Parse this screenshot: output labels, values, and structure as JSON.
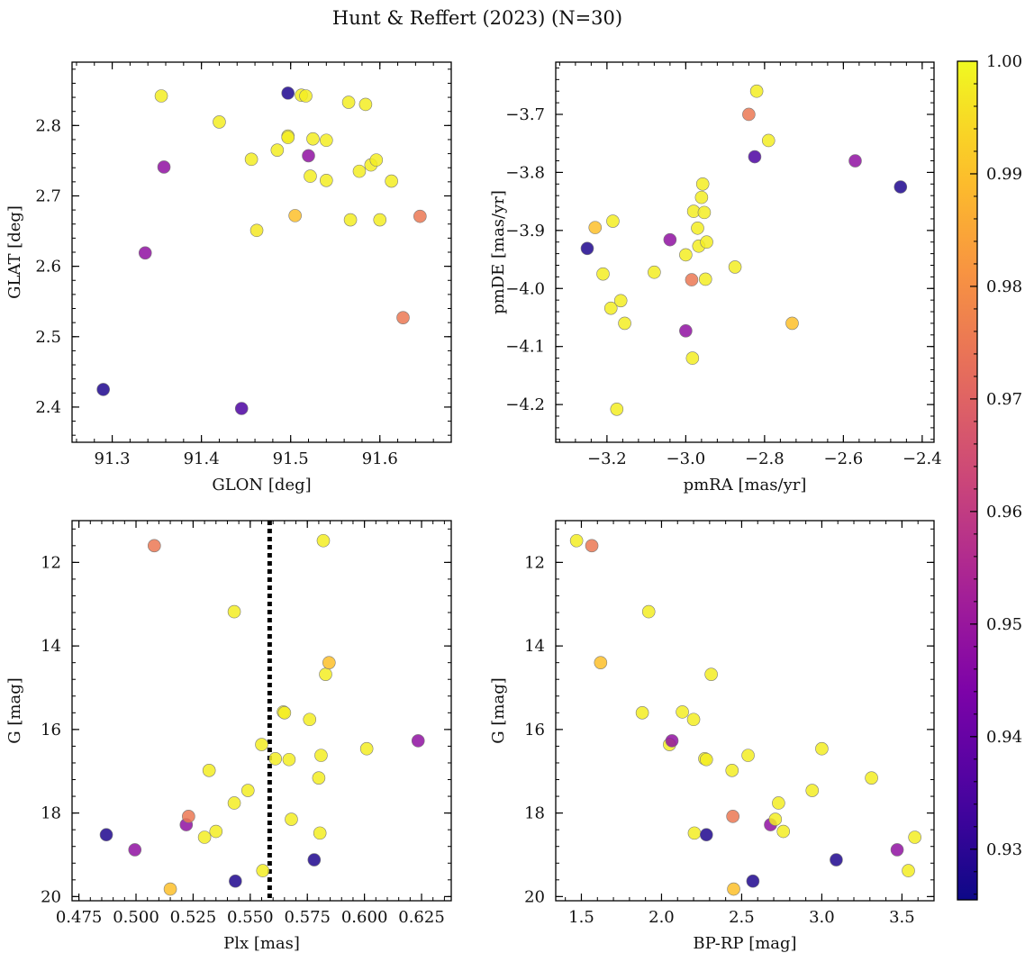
{
  "title": "Hunt & Reffert (2023) (N=30)",
  "colorbar": {
    "min": 0.9255,
    "max": 1.0,
    "ticks": [
      0.93,
      0.94,
      0.95,
      0.96,
      0.97,
      0.98,
      0.99,
      1.0
    ],
    "tick_labels": [
      "0.93",
      "0.94",
      "0.95",
      "0.96",
      "0.97",
      "0.98",
      "0.99",
      "1.00"
    ],
    "colormap": "plasma"
  },
  "chart_data": [
    {
      "type": "scatter",
      "name": "glon-glat",
      "xlabel": "GLON [deg]",
      "ylabel": "GLAT [deg]",
      "xlim": [
        91.255,
        91.68
      ],
      "ylim": [
        2.35,
        2.89
      ],
      "invert_y": false,
      "xticks": [
        91.3,
        91.4,
        91.5,
        91.6
      ],
      "xtick_labels": [
        "91.3",
        "91.4",
        "91.5",
        "91.6"
      ],
      "yticks": [
        2.4,
        2.5,
        2.6,
        2.7,
        2.8
      ],
      "ytick_labels": [
        "2.4",
        "2.5",
        "2.6",
        "2.7",
        "2.8"
      ],
      "points": [
        {
          "x": 91.29,
          "y": 2.425,
          "c": 0.928
        },
        {
          "x": 91.337,
          "y": 2.619,
          "c": 0.948
        },
        {
          "x": 91.355,
          "y": 2.842,
          "c": 0.998
        },
        {
          "x": 91.358,
          "y": 2.741,
          "c": 0.948
        },
        {
          "x": 91.42,
          "y": 2.805,
          "c": 0.998
        },
        {
          "x": 91.445,
          "y": 2.398,
          "c": 0.935
        },
        {
          "x": 91.456,
          "y": 2.752,
          "c": 0.998
        },
        {
          "x": 91.462,
          "y": 2.651,
          "c": 0.997
        },
        {
          "x": 91.485,
          "y": 2.765,
          "c": 0.998
        },
        {
          "x": 91.497,
          "y": 2.846,
          "c": 0.928
        },
        {
          "x": 91.497,
          "y": 2.785,
          "c": 0.998
        },
        {
          "x": 91.497,
          "y": 2.783,
          "c": 0.998
        },
        {
          "x": 91.505,
          "y": 2.672,
          "c": 0.99
        },
        {
          "x": 91.512,
          "y": 2.843,
          "c": 0.998
        },
        {
          "x": 91.517,
          "y": 2.842,
          "c": 0.998
        },
        {
          "x": 91.52,
          "y": 2.757,
          "c": 0.948
        },
        {
          "x": 91.522,
          "y": 2.728,
          "c": 0.998
        },
        {
          "x": 91.525,
          "y": 2.781,
          "c": 0.998
        },
        {
          "x": 91.54,
          "y": 2.779,
          "c": 0.998
        },
        {
          "x": 91.54,
          "y": 2.722,
          "c": 0.998
        },
        {
          "x": 91.565,
          "y": 2.833,
          "c": 0.998
        },
        {
          "x": 91.567,
          "y": 2.666,
          "c": 0.998
        },
        {
          "x": 91.577,
          "y": 2.735,
          "c": 0.998
        },
        {
          "x": 91.584,
          "y": 2.83,
          "c": 0.998
        },
        {
          "x": 91.59,
          "y": 2.744,
          "c": 0.998
        },
        {
          "x": 91.596,
          "y": 2.751,
          "c": 0.998
        },
        {
          "x": 91.6,
          "y": 2.666,
          "c": 0.998
        },
        {
          "x": 91.613,
          "y": 2.721,
          "c": 0.998
        },
        {
          "x": 91.626,
          "y": 2.527,
          "c": 0.975
        },
        {
          "x": 91.645,
          "y": 2.671,
          "c": 0.975
        }
      ]
    },
    {
      "type": "scatter",
      "name": "pmra-pmde",
      "xlabel": "pmRA [mas/yr]",
      "ylabel": "pmDE [mas/yr]",
      "xlim": [
        -3.33,
        -2.37
      ],
      "ylim": [
        -4.265,
        -3.61
      ],
      "invert_y": false,
      "xticks": [
        -3.2,
        -3.0,
        -2.8,
        -2.6,
        -2.4
      ],
      "xtick_labels": [
        "−3.2",
        "−3.0",
        "−2.8",
        "−2.6",
        "−2.4"
      ],
      "yticks": [
        -4.2,
        -4.1,
        -4.0,
        -3.9,
        -3.8,
        -3.7
      ],
      "ytick_labels": [
        "−4.2",
        "−4.1",
        "−4.0",
        "−3.9",
        "−3.8",
        "−3.7"
      ],
      "points": [
        {
          "x": -3.25,
          "y": -3.931,
          "c": 0.928
        },
        {
          "x": -3.23,
          "y": -3.895,
          "c": 0.99
        },
        {
          "x": -3.21,
          "y": -3.975,
          "c": 0.998
        },
        {
          "x": -3.185,
          "y": -3.884,
          "c": 0.998
        },
        {
          "x": -3.19,
          "y": -4.034,
          "c": 0.998
        },
        {
          "x": -3.175,
          "y": -4.208,
          "c": 0.998
        },
        {
          "x": -3.165,
          "y": -4.021,
          "c": 0.998
        },
        {
          "x": -3.155,
          "y": -4.06,
          "c": 0.998
        },
        {
          "x": -3.08,
          "y": -3.972,
          "c": 0.998
        },
        {
          "x": -3.04,
          "y": -3.916,
          "c": 0.948
        },
        {
          "x": -3.0,
          "y": -3.942,
          "c": 0.998
        },
        {
          "x": -3.0,
          "y": -4.073,
          "c": 0.948
        },
        {
          "x": -2.985,
          "y": -3.985,
          "c": 0.975
        },
        {
          "x": -2.983,
          "y": -4.12,
          "c": 0.998
        },
        {
          "x": -2.98,
          "y": -3.867,
          "c": 0.998
        },
        {
          "x": -2.97,
          "y": -3.896,
          "c": 0.998
        },
        {
          "x": -2.967,
          "y": -3.927,
          "c": 0.998
        },
        {
          "x": -2.96,
          "y": -3.843,
          "c": 0.998
        },
        {
          "x": -2.957,
          "y": -3.82,
          "c": 0.998
        },
        {
          "x": -2.953,
          "y": -3.869,
          "c": 0.998
        },
        {
          "x": -2.95,
          "y": -3.984,
          "c": 0.998
        },
        {
          "x": -2.947,
          "y": -3.92,
          "c": 0.998
        },
        {
          "x": -2.875,
          "y": -3.963,
          "c": 0.998
        },
        {
          "x": -2.84,
          "y": -3.7,
          "c": 0.975
        },
        {
          "x": -2.825,
          "y": -3.773,
          "c": 0.935
        },
        {
          "x": -2.82,
          "y": -3.66,
          "c": 0.998
        },
        {
          "x": -2.79,
          "y": -3.745,
          "c": 0.998
        },
        {
          "x": -2.73,
          "y": -4.06,
          "c": 0.99
        },
        {
          "x": -2.57,
          "y": -3.78,
          "c": 0.948
        },
        {
          "x": -2.455,
          "y": -3.825,
          "c": 0.928
        }
      ]
    },
    {
      "type": "scatter",
      "name": "plx-g",
      "xlabel": "Plx [mas]",
      "ylabel": "G [mag]",
      "xlim": [
        0.472,
        0.638
      ],
      "ylim": [
        11.0,
        20.1
      ],
      "invert_y": true,
      "vline": 0.5585,
      "xticks": [
        0.475,
        0.5,
        0.525,
        0.55,
        0.575,
        0.6,
        0.625
      ],
      "xtick_labels": [
        "0.475",
        "0.500",
        "0.525",
        "0.550",
        "0.575",
        "0.600",
        "0.625"
      ],
      "yticks": [
        12,
        14,
        16,
        18,
        20
      ],
      "ytick_labels": [
        "12",
        "14",
        "16",
        "18",
        "20"
      ],
      "points": [
        {
          "x": 0.487,
          "y": 18.52,
          "c": 0.928
        },
        {
          "x": 0.4995,
          "y": 18.88,
          "c": 0.948
        },
        {
          "x": 0.508,
          "y": 11.6,
          "c": 0.975
        },
        {
          "x": 0.515,
          "y": 19.82,
          "c": 0.99
        },
        {
          "x": 0.522,
          "y": 18.28,
          "c": 0.948
        },
        {
          "x": 0.523,
          "y": 18.08,
          "c": 0.975
        },
        {
          "x": 0.53,
          "y": 18.58,
          "c": 0.998
        },
        {
          "x": 0.532,
          "y": 16.98,
          "c": 0.998
        },
        {
          "x": 0.535,
          "y": 18.44,
          "c": 0.998
        },
        {
          "x": 0.543,
          "y": 13.18,
          "c": 0.998
        },
        {
          "x": 0.543,
          "y": 17.76,
          "c": 0.998
        },
        {
          "x": 0.5435,
          "y": 19.63,
          "c": 0.928
        },
        {
          "x": 0.549,
          "y": 17.46,
          "c": 0.998
        },
        {
          "x": 0.555,
          "y": 16.36,
          "c": 0.998
        },
        {
          "x": 0.5555,
          "y": 19.38,
          "c": 0.998
        },
        {
          "x": 0.561,
          "y": 16.7,
          "c": 0.998
        },
        {
          "x": 0.5645,
          "y": 15.58,
          "c": 0.998
        },
        {
          "x": 0.565,
          "y": 15.6,
          "c": 0.998
        },
        {
          "x": 0.567,
          "y": 16.72,
          "c": 0.998
        },
        {
          "x": 0.568,
          "y": 18.15,
          "c": 0.998
        },
        {
          "x": 0.576,
          "y": 15.76,
          "c": 0.998
        },
        {
          "x": 0.578,
          "y": 19.12,
          "c": 0.928
        },
        {
          "x": 0.58,
          "y": 17.16,
          "c": 0.998
        },
        {
          "x": 0.5805,
          "y": 18.48,
          "c": 0.998
        },
        {
          "x": 0.581,
          "y": 16.62,
          "c": 0.998
        },
        {
          "x": 0.582,
          "y": 11.48,
          "c": 0.998
        },
        {
          "x": 0.583,
          "y": 14.68,
          "c": 0.998
        },
        {
          "x": 0.5845,
          "y": 14.4,
          "c": 0.99
        },
        {
          "x": 0.601,
          "y": 16.46,
          "c": 0.998
        },
        {
          "x": 0.6235,
          "y": 16.27,
          "c": 0.948
        }
      ]
    },
    {
      "type": "scatter",
      "name": "bprp-g",
      "xlabel": "BP-RP [mag]",
      "ylabel": "G [mag]",
      "xlim": [
        1.34,
        3.7
      ],
      "ylim": [
        11.0,
        20.1
      ],
      "invert_y": true,
      "xticks": [
        1.5,
        2.0,
        2.5,
        3.0,
        3.5
      ],
      "xtick_labels": [
        "1.5",
        "2.0",
        "2.5",
        "3.0",
        "3.5"
      ],
      "yticks": [
        12,
        14,
        16,
        18,
        20
      ],
      "ytick_labels": [
        "12",
        "14",
        "16",
        "18",
        "20"
      ],
      "points": [
        {
          "x": 1.47,
          "y": 11.48,
          "c": 0.998
        },
        {
          "x": 1.565,
          "y": 11.6,
          "c": 0.975
        },
        {
          "x": 1.62,
          "y": 14.4,
          "c": 0.99
        },
        {
          "x": 1.88,
          "y": 15.6,
          "c": 0.998
        },
        {
          "x": 1.92,
          "y": 13.18,
          "c": 0.998
        },
        {
          "x": 2.05,
          "y": 16.36,
          "c": 0.998
        },
        {
          "x": 2.065,
          "y": 16.27,
          "c": 0.948
        },
        {
          "x": 2.13,
          "y": 15.58,
          "c": 0.998
        },
        {
          "x": 2.2,
          "y": 15.76,
          "c": 0.998
        },
        {
          "x": 2.205,
          "y": 18.48,
          "c": 0.998
        },
        {
          "x": 2.27,
          "y": 16.7,
          "c": 0.998
        },
        {
          "x": 2.28,
          "y": 16.72,
          "c": 0.998
        },
        {
          "x": 2.28,
          "y": 18.52,
          "c": 0.928
        },
        {
          "x": 2.31,
          "y": 14.68,
          "c": 0.998
        },
        {
          "x": 2.44,
          "y": 16.98,
          "c": 0.998
        },
        {
          "x": 2.445,
          "y": 18.08,
          "c": 0.975
        },
        {
          "x": 2.45,
          "y": 19.82,
          "c": 0.99
        },
        {
          "x": 2.54,
          "y": 16.62,
          "c": 0.998
        },
        {
          "x": 2.57,
          "y": 19.63,
          "c": 0.928
        },
        {
          "x": 2.68,
          "y": 18.28,
          "c": 0.948
        },
        {
          "x": 2.71,
          "y": 18.15,
          "c": 0.998
        },
        {
          "x": 2.73,
          "y": 17.76,
          "c": 0.998
        },
        {
          "x": 2.76,
          "y": 18.44,
          "c": 0.998
        },
        {
          "x": 2.94,
          "y": 17.46,
          "c": 0.998
        },
        {
          "x": 3.0,
          "y": 16.46,
          "c": 0.998
        },
        {
          "x": 3.09,
          "y": 19.12,
          "c": 0.928
        },
        {
          "x": 3.31,
          "y": 17.16,
          "c": 0.998
        },
        {
          "x": 3.47,
          "y": 18.88,
          "c": 0.948
        },
        {
          "x": 3.54,
          "y": 19.38,
          "c": 0.998
        },
        {
          "x": 3.58,
          "y": 18.58,
          "c": 0.998
        }
      ]
    }
  ]
}
